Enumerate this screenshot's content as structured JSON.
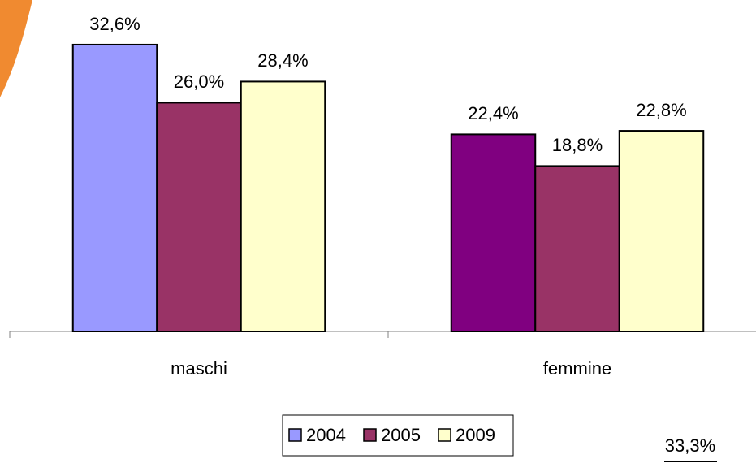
{
  "chart_data": {
    "type": "bar",
    "categories": [
      "maschi",
      "femmine"
    ],
    "series": [
      {
        "name": "2004",
        "color": "#9999ff",
        "colors": [
          "#9999ff",
          "#800080"
        ],
        "values": [
          32.6,
          22.4
        ],
        "value_labels": [
          "32,6%",
          "22,4%"
        ]
      },
      {
        "name": "2005",
        "color": "#993366",
        "values": [
          26.0,
          18.8
        ],
        "value_labels": [
          "26,0%",
          "18,8%"
        ]
      },
      {
        "name": "2009",
        "color": "#ffffcc",
        "values": [
          28.4,
          22.8
        ],
        "value_labels": [
          "28,4%",
          "22,8%"
        ]
      }
    ],
    "annotation": "33,3%",
    "legend": "bottom"
  }
}
